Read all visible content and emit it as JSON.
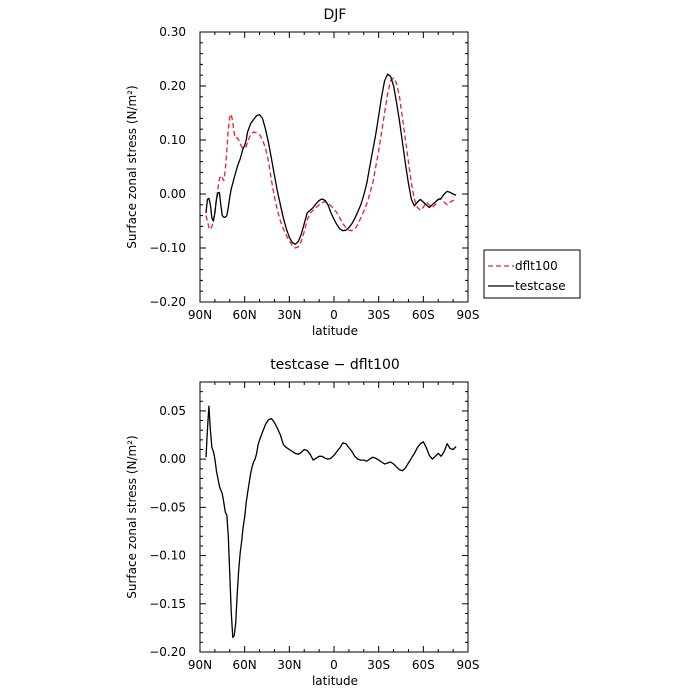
{
  "chart_data": [
    {
      "type": "line",
      "title": "DJF",
      "xlabel": "latitude",
      "ylabel": "Surface zonal stress (N/m²)",
      "xlim": [
        90,
        -90
      ],
      "ylim": [
        -0.2,
        0.3
      ],
      "xticks": [
        90,
        60,
        30,
        0,
        -30,
        -60,
        -90
      ],
      "xtick_labels": [
        "90N",
        "60N",
        "30N",
        "0",
        "30S",
        "60S",
        "90S"
      ],
      "yticks": [
        -0.2,
        -0.1,
        0.0,
        0.1,
        0.2,
        0.3
      ],
      "ytick_labels": [
        "−0.20",
        "−0.10",
        "0.00",
        "0.10",
        "0.20",
        "0.30"
      ],
      "legend": {
        "placement": "right-outside"
      },
      "series": [
        {
          "name": "dflt100",
          "color": "#e8202a",
          "dash": "dashed",
          "x": [
            86,
            85,
            84,
            83,
            82,
            81,
            80,
            79,
            78,
            77,
            76,
            75,
            74,
            73,
            72,
            71,
            70,
            69,
            68,
            67,
            66,
            65,
            64,
            63,
            62,
            61,
            60,
            59,
            58,
            56,
            54,
            52,
            50,
            48,
            46,
            44,
            42,
            40,
            38,
            36,
            34,
            32,
            30,
            28,
            26,
            24,
            22,
            20,
            18,
            16,
            14,
            12,
            10,
            8,
            6,
            4,
            2,
            0,
            -2,
            -4,
            -6,
            -8,
            -10,
            -12,
            -14,
            -16,
            -18,
            -20,
            -22,
            -24,
            -26,
            -28,
            -30,
            -32,
            -34,
            -36,
            -38,
            -40,
            -42,
            -44,
            -46,
            -48,
            -50,
            -52,
            -54,
            -56,
            -58,
            -60,
            -62,
            -64,
            -66,
            -68,
            -70,
            -72,
            -74,
            -76,
            -78,
            -80,
            -82
          ],
          "y": [
            -0.04,
            -0.05,
            -0.062,
            -0.066,
            -0.06,
            -0.048,
            -0.032,
            -0.01,
            0.01,
            0.028,
            0.034,
            0.03,
            0.025,
            0.045,
            0.08,
            0.12,
            0.143,
            0.148,
            0.132,
            0.112,
            0.103,
            0.104,
            0.1,
            0.093,
            0.087,
            0.085,
            0.085,
            0.088,
            0.097,
            0.11,
            0.115,
            0.113,
            0.11,
            0.1,
            0.085,
            0.06,
            0.025,
            -0.005,
            -0.03,
            -0.05,
            -0.065,
            -0.077,
            -0.087,
            -0.095,
            -0.1,
            -0.098,
            -0.088,
            -0.07,
            -0.048,
            -0.035,
            -0.03,
            -0.025,
            -0.02,
            -0.016,
            -0.014,
            -0.018,
            -0.022,
            -0.028,
            -0.035,
            -0.045,
            -0.055,
            -0.062,
            -0.067,
            -0.068,
            -0.065,
            -0.057,
            -0.044,
            -0.032,
            -0.018,
            0.0,
            0.02,
            0.05,
            0.08,
            0.115,
            0.15,
            0.185,
            0.21,
            0.215,
            0.205,
            0.18,
            0.14,
            0.1,
            0.06,
            0.02,
            -0.01,
            -0.025,
            -0.03,
            -0.025,
            -0.015,
            -0.02,
            -0.025,
            -0.02,
            -0.01,
            -0.01,
            -0.015,
            -0.02,
            -0.015,
            -0.012,
            -0.01
          ]
        },
        {
          "name": "testcase",
          "color": "#000000",
          "dash": "solid",
          "x": [
            86,
            85,
            84,
            83,
            82,
            81,
            80,
            79,
            78,
            77,
            76,
            75,
            74,
            73,
            72,
            71,
            70,
            69,
            68,
            67,
            66,
            65,
            64,
            63,
            62,
            61,
            60,
            59,
            58,
            56,
            54,
            52,
            50,
            48,
            46,
            44,
            42,
            40,
            38,
            36,
            34,
            32,
            30,
            28,
            26,
            24,
            22,
            20,
            18,
            16,
            14,
            12,
            10,
            8,
            6,
            4,
            2,
            0,
            -2,
            -4,
            -6,
            -8,
            -10,
            -12,
            -14,
            -16,
            -18,
            -20,
            -22,
            -24,
            -26,
            -28,
            -30,
            -32,
            -34,
            -36,
            -38,
            -40,
            -42,
            -44,
            -46,
            -48,
            -50,
            -52,
            -54,
            -56,
            -58,
            -60,
            -62,
            -64,
            -66,
            -68,
            -70,
            -72,
            -74,
            -76,
            -78,
            -80,
            -82
          ],
          "y": [
            -0.035,
            -0.01,
            -0.008,
            -0.02,
            -0.045,
            -0.05,
            -0.035,
            -0.01,
            0.002,
            0.003,
            -0.02,
            -0.04,
            -0.043,
            -0.043,
            -0.04,
            -0.025,
            -0.005,
            0.01,
            0.02,
            0.03,
            0.04,
            0.05,
            0.058,
            0.065,
            0.075,
            0.085,
            0.09,
            0.1,
            0.115,
            0.13,
            0.138,
            0.145,
            0.147,
            0.14,
            0.12,
            0.095,
            0.065,
            0.035,
            0.005,
            -0.02,
            -0.045,
            -0.065,
            -0.08,
            -0.09,
            -0.093,
            -0.088,
            -0.075,
            -0.055,
            -0.035,
            -0.03,
            -0.025,
            -0.018,
            -0.012,
            -0.009,
            -0.012,
            -0.02,
            -0.035,
            -0.047,
            -0.057,
            -0.065,
            -0.068,
            -0.067,
            -0.062,
            -0.055,
            -0.045,
            -0.033,
            -0.02,
            -0.002,
            0.02,
            0.05,
            0.08,
            0.11,
            0.145,
            0.18,
            0.21,
            0.222,
            0.218,
            0.2,
            0.17,
            0.135,
            0.095,
            0.055,
            0.02,
            -0.01,
            -0.022,
            -0.015,
            -0.01,
            -0.015,
            -0.02,
            -0.025,
            -0.02,
            -0.015,
            -0.01,
            -0.008,
            0.0,
            0.005,
            0.003,
            0.0,
            -0.002
          ]
        }
      ]
    },
    {
      "type": "line",
      "title": "testcase − dflt100",
      "xlabel": "latitude",
      "ylabel": "Surface zonal stress (N/m²)",
      "xlim": [
        90,
        -90
      ],
      "ylim": [
        -0.2,
        0.08
      ],
      "xticks": [
        90,
        60,
        30,
        0,
        -30,
        -60,
        -90
      ],
      "xtick_labels": [
        "90N",
        "60N",
        "30N",
        "0",
        "30S",
        "60S",
        "90S"
      ],
      "yticks": [
        -0.2,
        -0.15,
        -0.1,
        -0.05,
        0.0,
        0.05
      ],
      "ytick_labels": [
        "−0.20",
        "−0.15",
        "−0.10",
        "−0.05",
        "0.00",
        "0.05"
      ],
      "series": [
        {
          "color": "#000000",
          "dash": "solid",
          "x": [
            86,
            85,
            84,
            83,
            82,
            81,
            80,
            79,
            78,
            77,
            76,
            75,
            74,
            73,
            72,
            71,
            70,
            69,
            68,
            67,
            66,
            65,
            64,
            63,
            62,
            61,
            60,
            59,
            58,
            57,
            56,
            55,
            54,
            53,
            52,
            51,
            50,
            48,
            46,
            44,
            42,
            40,
            38,
            36,
            34,
            32,
            30,
            28,
            26,
            24,
            22,
            20,
            18,
            16,
            14,
            12,
            10,
            8,
            6,
            4,
            2,
            0,
            -2,
            -4,
            -6,
            -8,
            -10,
            -12,
            -14,
            -16,
            -18,
            -20,
            -22,
            -24,
            -26,
            -28,
            -30,
            -32,
            -34,
            -36,
            -38,
            -40,
            -42,
            -44,
            -46,
            -48,
            -50,
            -52,
            -54,
            -56,
            -58,
            -60,
            -62,
            -64,
            -66,
            -68,
            -70,
            -72,
            -74,
            -76,
            -78,
            -80,
            -82
          ],
          "y": [
            0.002,
            0.03,
            0.055,
            0.03,
            0.012,
            0.008,
            0.0,
            -0.012,
            -0.02,
            -0.028,
            -0.032,
            -0.036,
            -0.045,
            -0.055,
            -0.058,
            -0.08,
            -0.12,
            -0.16,
            -0.185,
            -0.183,
            -0.17,
            -0.14,
            -0.115,
            -0.097,
            -0.085,
            -0.07,
            -0.06,
            -0.045,
            -0.035,
            -0.025,
            -0.015,
            -0.008,
            -0.003,
            0.0,
            0.006,
            0.015,
            0.02,
            0.028,
            0.036,
            0.041,
            0.042,
            0.038,
            0.032,
            0.025,
            0.015,
            0.012,
            0.01,
            0.008,
            0.006,
            0.005,
            0.007,
            0.01,
            0.009,
            0.005,
            -0.001,
            0.001,
            0.003,
            0.003,
            0.001,
            0.0,
            0.001,
            0.004,
            0.008,
            0.012,
            0.017,
            0.016,
            0.012,
            0.008,
            0.003,
            0.0,
            -0.001,
            -0.001,
            -0.002,
            0.0,
            0.002,
            0.001,
            -0.001,
            -0.003,
            -0.005,
            -0.004,
            -0.003,
            -0.005,
            -0.008,
            -0.011,
            -0.012,
            -0.009,
            -0.004,
            0.001,
            0.006,
            0.012,
            0.016,
            0.018,
            0.012,
            0.004,
            0.0,
            0.003,
            0.006,
            0.003,
            0.008,
            0.016,
            0.011,
            0.01,
            0.013
          ]
        }
      ]
    }
  ]
}
